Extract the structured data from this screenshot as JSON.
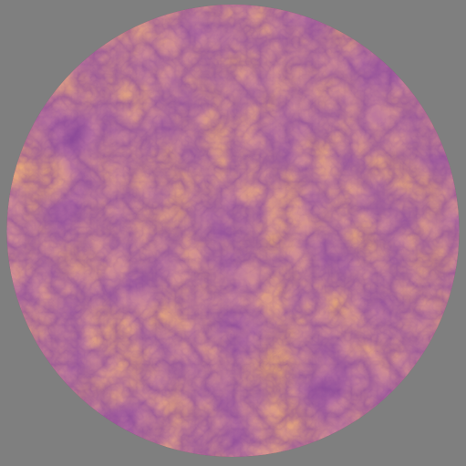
{
  "scene": {
    "kind": "circular noise texture",
    "background_color": "#7f7f7f",
    "shape": "circle",
    "colors": {
      "dark": "#4a1454",
      "mid": "#8e3c5e",
      "warm": "#c76434",
      "bright": "#ef8c1c"
    }
  }
}
